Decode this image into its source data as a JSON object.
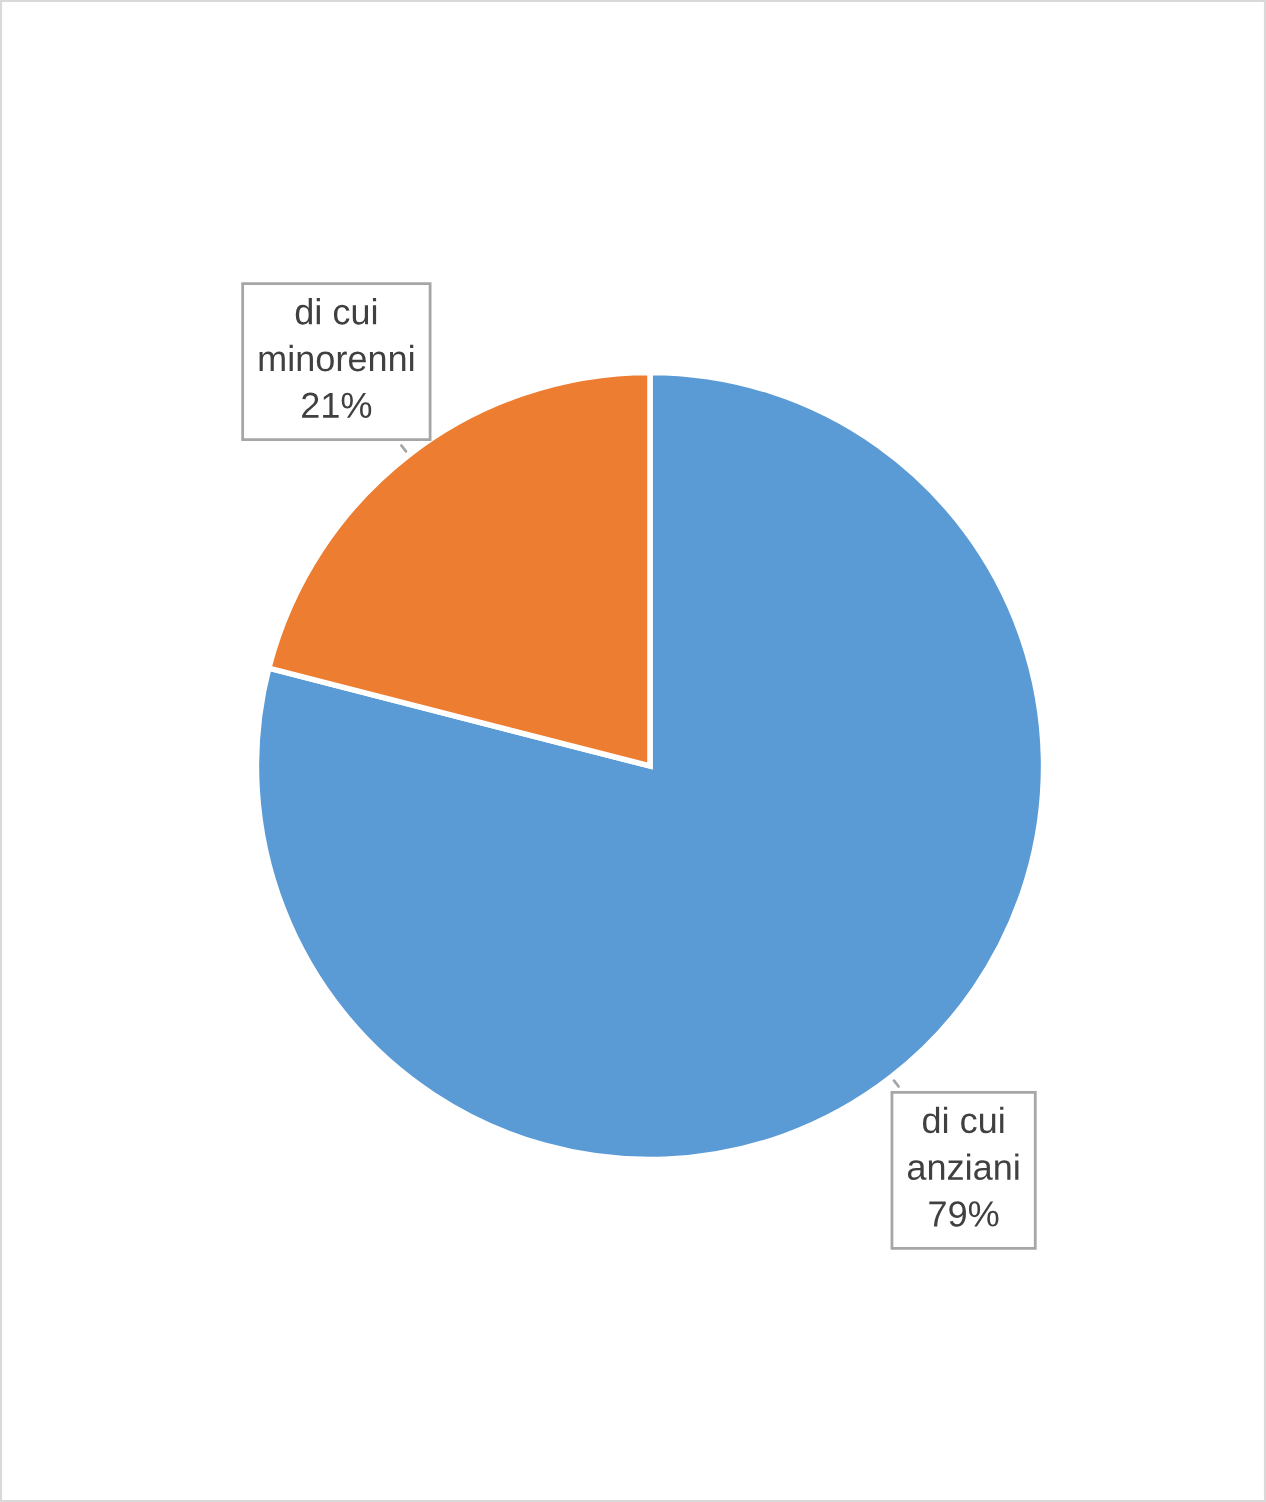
{
  "chart_data": {
    "type": "pie",
    "categories": [
      "di cui anziani",
      "di cui minorenni"
    ],
    "values": [
      79,
      21
    ],
    "colors": [
      "#5b9bd5",
      "#ed7d31"
    ],
    "value_labels": [
      "79%",
      "21%"
    ],
    "legend": false
  }
}
